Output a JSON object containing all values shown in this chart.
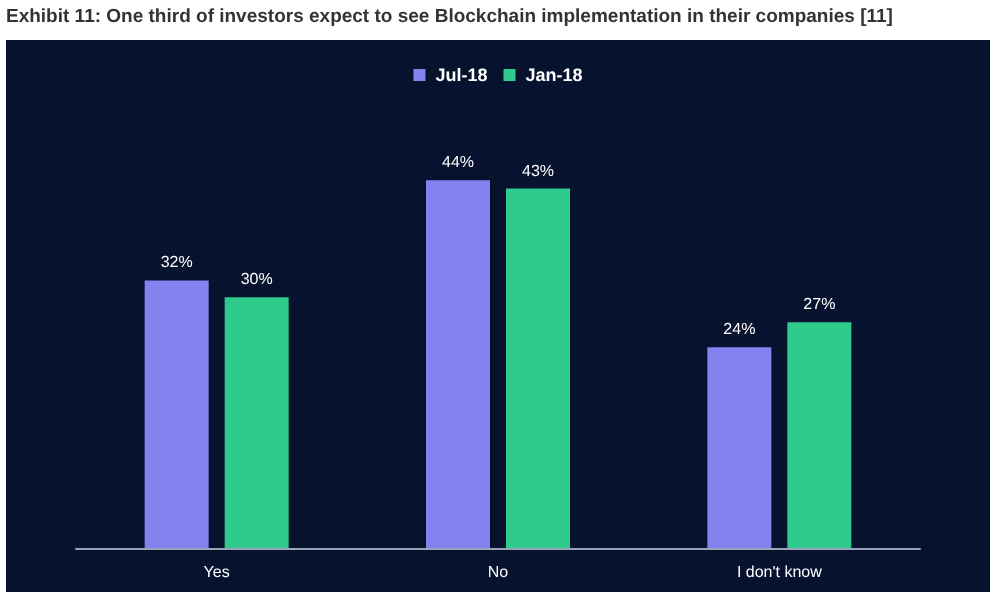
{
  "chart_data": {
    "type": "bar",
    "title": "Exhibit 11: One third of investors expect to see Blockchain implementation in their companies [11]",
    "categories": [
      "Yes",
      "No",
      "I don't know"
    ],
    "series": [
      {
        "name": "Jul-18",
        "color": "#8383ef",
        "values": [
          32,
          44,
          24
        ],
        "value_labels": [
          "32%",
          "44%",
          "24%"
        ]
      },
      {
        "name": "Jan-18",
        "color": "#2fcb8c",
        "values": [
          30,
          43,
          27
        ],
        "value_labels": [
          "30%",
          "43%",
          "27%"
        ]
      }
    ],
    "legend": "top"
  }
}
